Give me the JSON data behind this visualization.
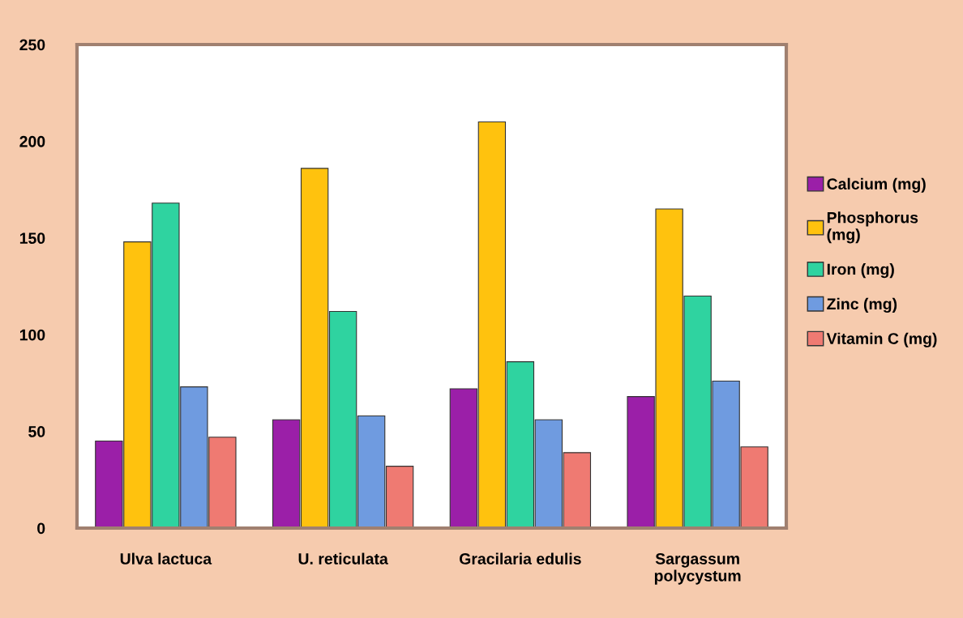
{
  "chart_data": {
    "type": "bar",
    "categories": [
      "Ulva lactuca",
      "U. reticulata",
      "Gracilaria edulis",
      "Sargassum\npolycystum"
    ],
    "series": [
      {
        "name": "Calcium (mg)",
        "color": "#9b1fa8",
        "values": [
          45,
          56,
          72,
          68
        ]
      },
      {
        "name": "Phosphorus\n(mg)",
        "color": "#ffc20e",
        "values": [
          148,
          186,
          210,
          165
        ]
      },
      {
        "name": "Iron (mg)",
        "color": "#2fd3a0",
        "values": [
          168,
          112,
          86,
          120
        ]
      },
      {
        "name": "Zinc (mg)",
        "color": "#6f9be0",
        "values": [
          73,
          58,
          56,
          76
        ]
      },
      {
        "name": "Vitamin C (mg)",
        "color": "#ef7a72",
        "values": [
          47,
          32,
          39,
          42
        ]
      }
    ],
    "ylim": [
      0,
      250
    ],
    "yticks": [
      0,
      50,
      100,
      150,
      200,
      250
    ],
    "grid": false,
    "legend": "right"
  }
}
